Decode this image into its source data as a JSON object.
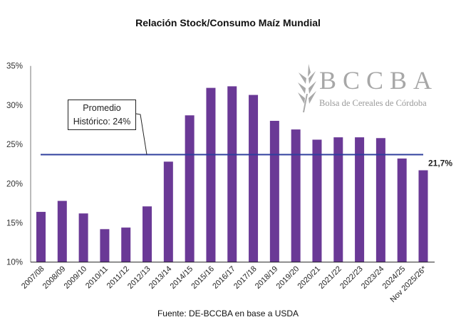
{
  "chart_data": {
    "type": "bar",
    "title": "Relación Stock/Consumo Maíz Mundial",
    "source": "Fuente: DE-BCCBA en base a USDA",
    "categories": [
      "2007/08",
      "2008/09",
      "2009/10",
      "2010/11",
      "2011/12",
      "2012/13",
      "2013/14",
      "2014/15",
      "2015/16",
      "2016/17",
      "2017/18",
      "2018/19",
      "2019/20",
      "2020/21",
      "2021/22",
      "2022/23",
      "2023/24",
      "2024/25",
      "Nov 2025/26*"
    ],
    "values": [
      16.4,
      17.8,
      16.2,
      14.2,
      14.4,
      17.1,
      22.8,
      28.7,
      32.2,
      32.4,
      31.3,
      28.0,
      26.9,
      25.6,
      25.9,
      25.9,
      25.8,
      23.2,
      21.7
    ],
    "unit": "%",
    "ylim": [
      10,
      35
    ],
    "yticks": [
      10,
      15,
      20,
      25,
      30,
      35
    ],
    "ytick_labels": [
      "10%",
      "15%",
      "20%",
      "25%",
      "30%",
      "35%"
    ],
    "grid": false,
    "bar_color": "#6a3996",
    "reference_line": {
      "value": 23.7,
      "label_line1": "Promedio",
      "label_line2": "Histórico: 24%",
      "color": "#2f3f9e"
    },
    "data_labels": [
      {
        "category": "Nov 2025/26*",
        "text": "21,7%"
      }
    ]
  },
  "logo": {
    "main": "BCCBA",
    "sub": "Bolsa de Cereales de Córdoba"
  }
}
